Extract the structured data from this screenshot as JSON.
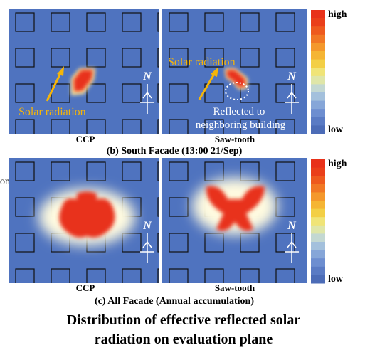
{
  "header": {
    "partial_text": "on"
  },
  "legend": {
    "high": "high",
    "low": "low"
  },
  "compass_label": "N",
  "panels": [
    {
      "left_label": "CCP",
      "right_label": "Saw-tooth",
      "caption": "(b) South Facade (13:00 21/Sep)",
      "annotations": {
        "left_solar": "Solar radiation",
        "right_solar": "Solar radiation",
        "reflected_1": "Reflected to",
        "reflected_2": "neighboring building"
      }
    },
    {
      "left_label": "CCP",
      "right_label": "Saw-tooth",
      "caption": "(c) All Facade (Annual accumulation)"
    }
  ],
  "title": [
    "Distribution of effective reflected solar",
    "radiation on evaluation plane"
  ]
}
